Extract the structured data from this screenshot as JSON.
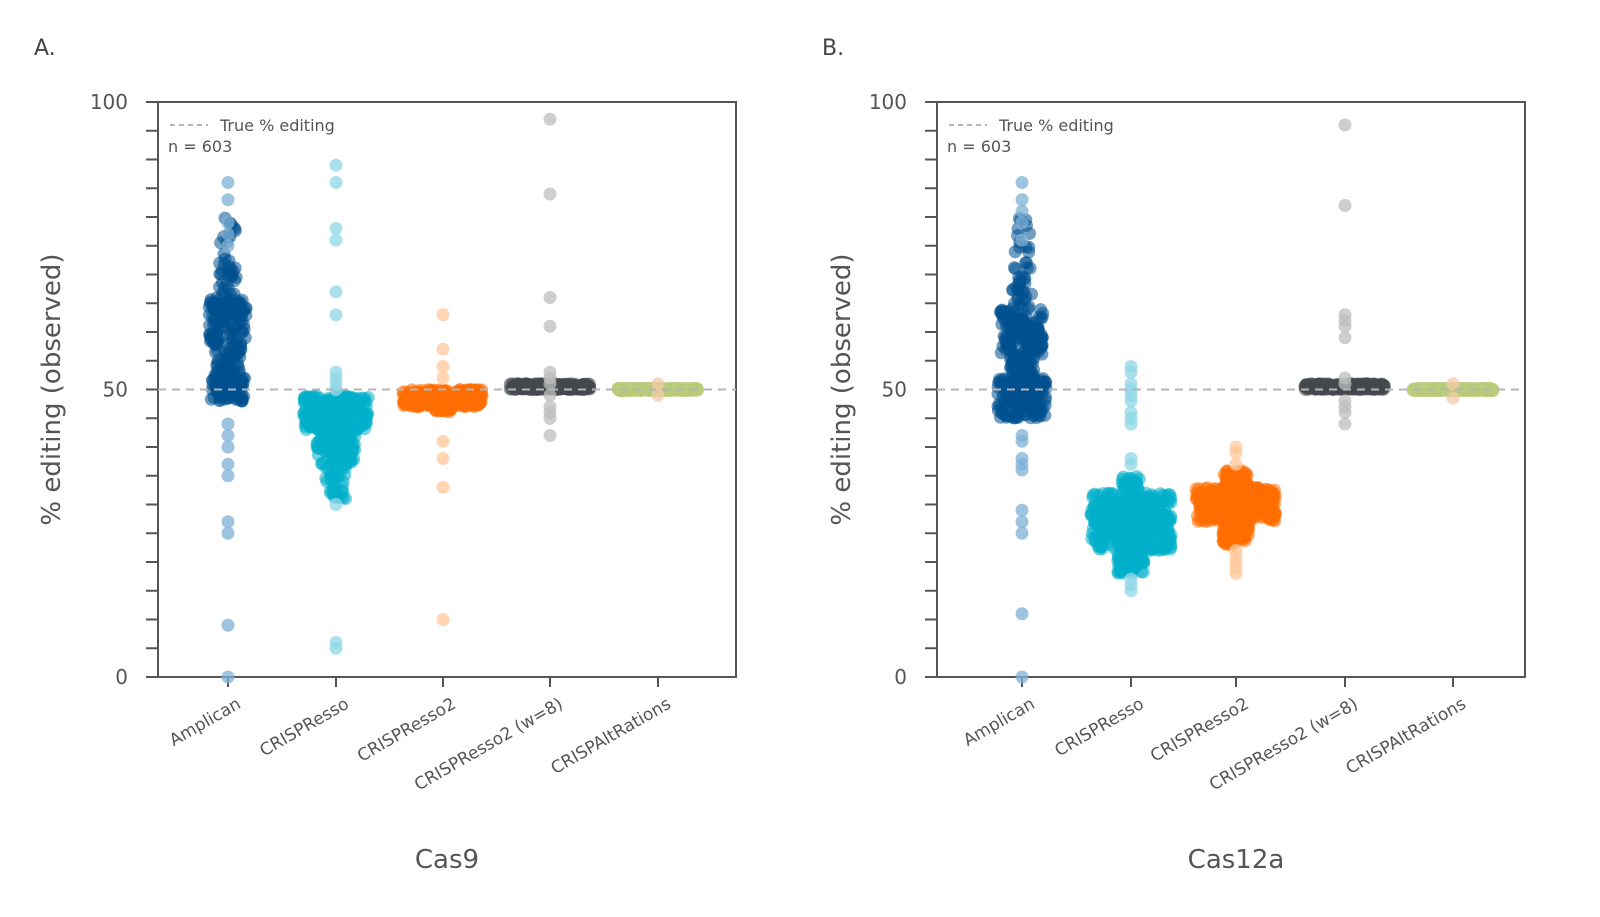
{
  "chart_data": [
    {
      "panel": "A.",
      "type": "scatter",
      "subtype": "swarm",
      "title": "",
      "xlabel": "Cas9",
      "ylabel": "% editing (observed)",
      "ylim": [
        0,
        100
      ],
      "yticks": [
        "0",
        "50",
        "100"
      ],
      "minor_tick_step": 5,
      "reference_line": {
        "label": "True % editing",
        "value": 50
      },
      "annotation": "n = 603",
      "legend_placement": "top-left",
      "categories": [
        "Amplican",
        "CRISPResso",
        "CRISPResso2",
        "CRISPResso2 (w=8)",
        "CRISPAltRations"
      ],
      "groups": [
        {
          "name": "Amplican",
          "color": "#00508f",
          "outlier_color": "#7fb0d6",
          "core": [
            [
              48,
              52,
              90
            ],
            [
              52,
              58,
              60
            ],
            [
              58,
              66,
              110
            ],
            [
              66,
              72,
              25
            ],
            [
              72,
              80,
              14
            ]
          ],
          "points": [
            86,
            83,
            79,
            77,
            75,
            44,
            42,
            40,
            37,
            35,
            27,
            25,
            9,
            0
          ]
        },
        {
          "name": "CRISPResso",
          "color": "#00aecb",
          "outlier_color": "#8fd7e6",
          "core": [
            [
              43,
              49,
              220
            ],
            [
              37,
              43,
              110
            ],
            [
              31,
              37,
              35
            ]
          ],
          "points": [
            89,
            86,
            78,
            76,
            67,
            63,
            53,
            52,
            51,
            50,
            30,
            6,
            5
          ]
        },
        {
          "name": "CRISPResso2",
          "color": "#ff6e00",
          "outlier_color": "#ffc79a",
          "core": [
            [
              47,
              50,
              300
            ],
            [
              46,
              47,
              20
            ]
          ],
          "points": [
            63,
            57,
            54,
            52,
            41,
            38,
            33,
            10
          ]
        },
        {
          "name": "CRISPResso2 (w=8)",
          "color": "#45494e",
          "outlier_color": "#bdbdbd",
          "core": [
            [
              50,
              51,
              300
            ]
          ],
          "points": [
            97,
            84,
            66,
            61,
            53,
            52,
            51,
            49,
            47,
            46,
            45,
            42
          ]
        },
        {
          "name": "CRISPAltRations",
          "color": "#b8cc7a",
          "outlier_color": "#f4c9a8",
          "core": [
            [
              49.8,
              50.2,
              300
            ]
          ],
          "points": [
            51,
            49
          ]
        }
      ]
    },
    {
      "panel": "B.",
      "type": "scatter",
      "subtype": "swarm",
      "title": "",
      "xlabel": "Cas12a",
      "ylabel": "% editing (observed)",
      "ylim": [
        0,
        100
      ],
      "yticks": [
        "0",
        "50",
        "100"
      ],
      "minor_tick_step": 5,
      "reference_line": {
        "label": "True % editing",
        "value": 50
      },
      "annotation": "n = 603",
      "legend_placement": "top-left",
      "categories": [
        "Amplican",
        "CRISPResso",
        "CRISPResso2",
        "CRISPResso2 (w=8)",
        "CRISPAltRations"
      ],
      "groups": [
        {
          "name": "Amplican",
          "color": "#00508f",
          "outlier_color": "#7fb0d6",
          "core": [
            [
              45,
              52,
              150
            ],
            [
              52,
              56,
              50
            ],
            [
              56,
              64,
              130
            ],
            [
              64,
              72,
              30
            ],
            [
              72,
              80,
              15
            ]
          ],
          "points": [
            86,
            83,
            81,
            79,
            76,
            42,
            41,
            38,
            37,
            36,
            29,
            27,
            25,
            11,
            0
          ]
        },
        {
          "name": "CRISPResso",
          "color": "#00aecb",
          "outlier_color": "#8fd7e6",
          "core": [
            [
              22,
              32,
              350
            ],
            [
              18,
              22,
              60
            ],
            [
              32,
              35,
              30
            ]
          ],
          "points": [
            54,
            53,
            51,
            50,
            49,
            48,
            46,
            45,
            44,
            38,
            37,
            17,
            16,
            15
          ]
        },
        {
          "name": "CRISPResso2",
          "color": "#ff6e00",
          "outlier_color": "#ffc79a",
          "core": [
            [
              27,
              33,
              350
            ],
            [
              23,
              27,
              60
            ],
            [
              33,
              36,
              50
            ]
          ],
          "points": [
            40,
            39,
            37,
            22,
            21,
            20,
            19,
            18
          ]
        },
        {
          "name": "CRISPResso2 (w=8)",
          "color": "#45494e",
          "outlier_color": "#bdbdbd",
          "core": [
            [
              50,
              51,
              300
            ]
          ],
          "points": [
            96,
            82,
            63,
            62,
            61,
            59,
            52,
            51,
            48,
            47,
            46,
            44
          ]
        },
        {
          "name": "CRISPAltRations",
          "color": "#b8cc7a",
          "outlier_color": "#f4c9a8",
          "core": [
            [
              49.8,
              50.2,
              300
            ]
          ],
          "points": [
            51,
            48.5
          ]
        }
      ]
    }
  ]
}
